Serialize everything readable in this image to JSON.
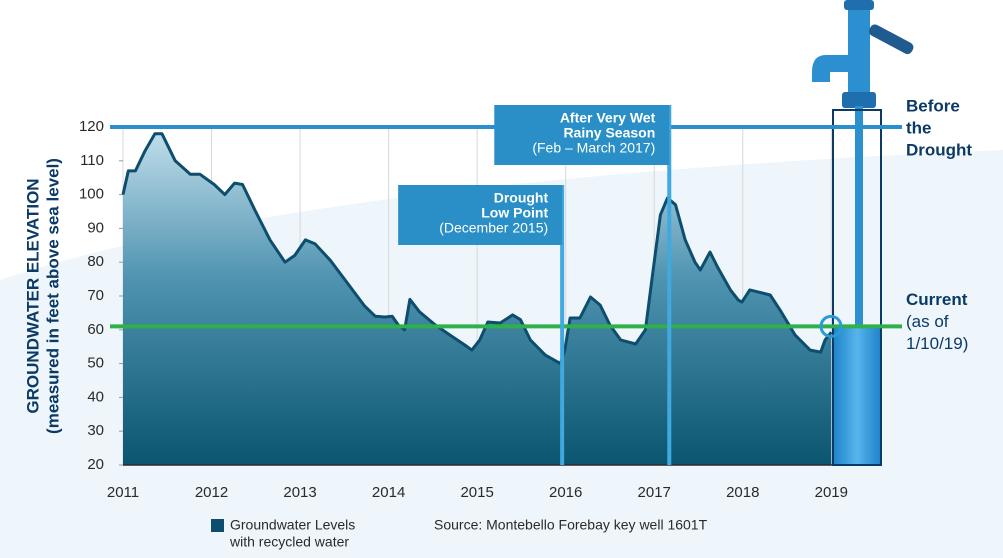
{
  "chart_data": {
    "type": "area",
    "y_label_lines": [
      "GROUNDWATER ELEVATION",
      "(measured in feet above sea level)"
    ],
    "x": [
      2011.0,
      2011.06,
      2011.14,
      2011.25,
      2011.36,
      2011.44,
      2011.59,
      2011.76,
      2011.87,
      2012.03,
      2012.15,
      2012.26,
      2012.35,
      2012.49,
      2012.66,
      2012.83,
      2012.94,
      2013.06,
      2013.17,
      2013.34,
      2013.51,
      2013.73,
      2013.85,
      2013.96,
      2014.04,
      2014.11,
      2014.18,
      2014.24,
      2014.35,
      2014.53,
      2014.69,
      2014.86,
      2014.94,
      2015.03,
      2015.12,
      2015.26,
      2015.4,
      2015.49,
      2015.6,
      2015.77,
      2015.94,
      2015.99,
      2016.05,
      2016.16,
      2016.28,
      2016.39,
      2016.5,
      2016.62,
      2016.79,
      2016.9,
      2016.98,
      2017.07,
      2017.15,
      2017.24,
      2017.35,
      2017.46,
      2017.52,
      2017.63,
      2017.72,
      2017.86,
      2017.95,
      2017.99,
      2018.08,
      2018.2,
      2018.31,
      2018.42,
      2018.59,
      2018.76,
      2018.88,
      2018.93,
      2019.0
    ],
    "series": [
      {
        "name_lines": [
          "Groundwater Levels",
          "with recycled water"
        ],
        "color": "#0d4d6e",
        "values": [
          100,
          107,
          107,
          113,
          118,
          118,
          110,
          106,
          106,
          103,
          100,
          103.4,
          103,
          95.4,
          86.6,
          80,
          82,
          86.6,
          85.4,
          80.6,
          74.7,
          67,
          64,
          63.8,
          64,
          61.4,
          60,
          69,
          65.3,
          61.4,
          58.5,
          55.5,
          54,
          57,
          62.3,
          62,
          64.4,
          63,
          57,
          52.5,
          50,
          54,
          63.5,
          63.5,
          69.7,
          67.3,
          61.4,
          57,
          55.8,
          60,
          76.2,
          94,
          99,
          97,
          86.6,
          80,
          77.7,
          83,
          78.3,
          71.8,
          68.8,
          68.2,
          71.8,
          71,
          70.3,
          65.9,
          58.5,
          54,
          53.4,
          57,
          59.3
        ]
      }
    ],
    "xlim": [
      2011,
      2019.55
    ],
    "xticks": [
      2011,
      2012,
      2013,
      2014,
      2015,
      2016,
      2017,
      2018,
      2019
    ],
    "ylim": [
      20,
      120
    ],
    "yticks": [
      20,
      30,
      40,
      50,
      60,
      70,
      80,
      90,
      100,
      110,
      120
    ],
    "grid": "x",
    "annotations": [
      {
        "x": 2015.96,
        "title_lines": [
          "Drought",
          "Low Point"
        ],
        "subtitle": "(December 2015)"
      },
      {
        "x": 2017.17,
        "title_lines": [
          "After Very Wet",
          "Rainy Season"
        ],
        "subtitle": "(Feb – March 2017)"
      }
    ],
    "reference_lines": [
      {
        "y": 120,
        "color": "#2a8fcf",
        "label_lines": [
          "Before",
          "the",
          "Drought"
        ]
      },
      {
        "y": 61,
        "color": "#2fb04a",
        "label_lines": [
          "Current"
        ],
        "sublabel_lines": [
          "(as of",
          "1/10/19)"
        ]
      }
    ],
    "source": "Source: Montebello Forebay key well 1601T"
  }
}
